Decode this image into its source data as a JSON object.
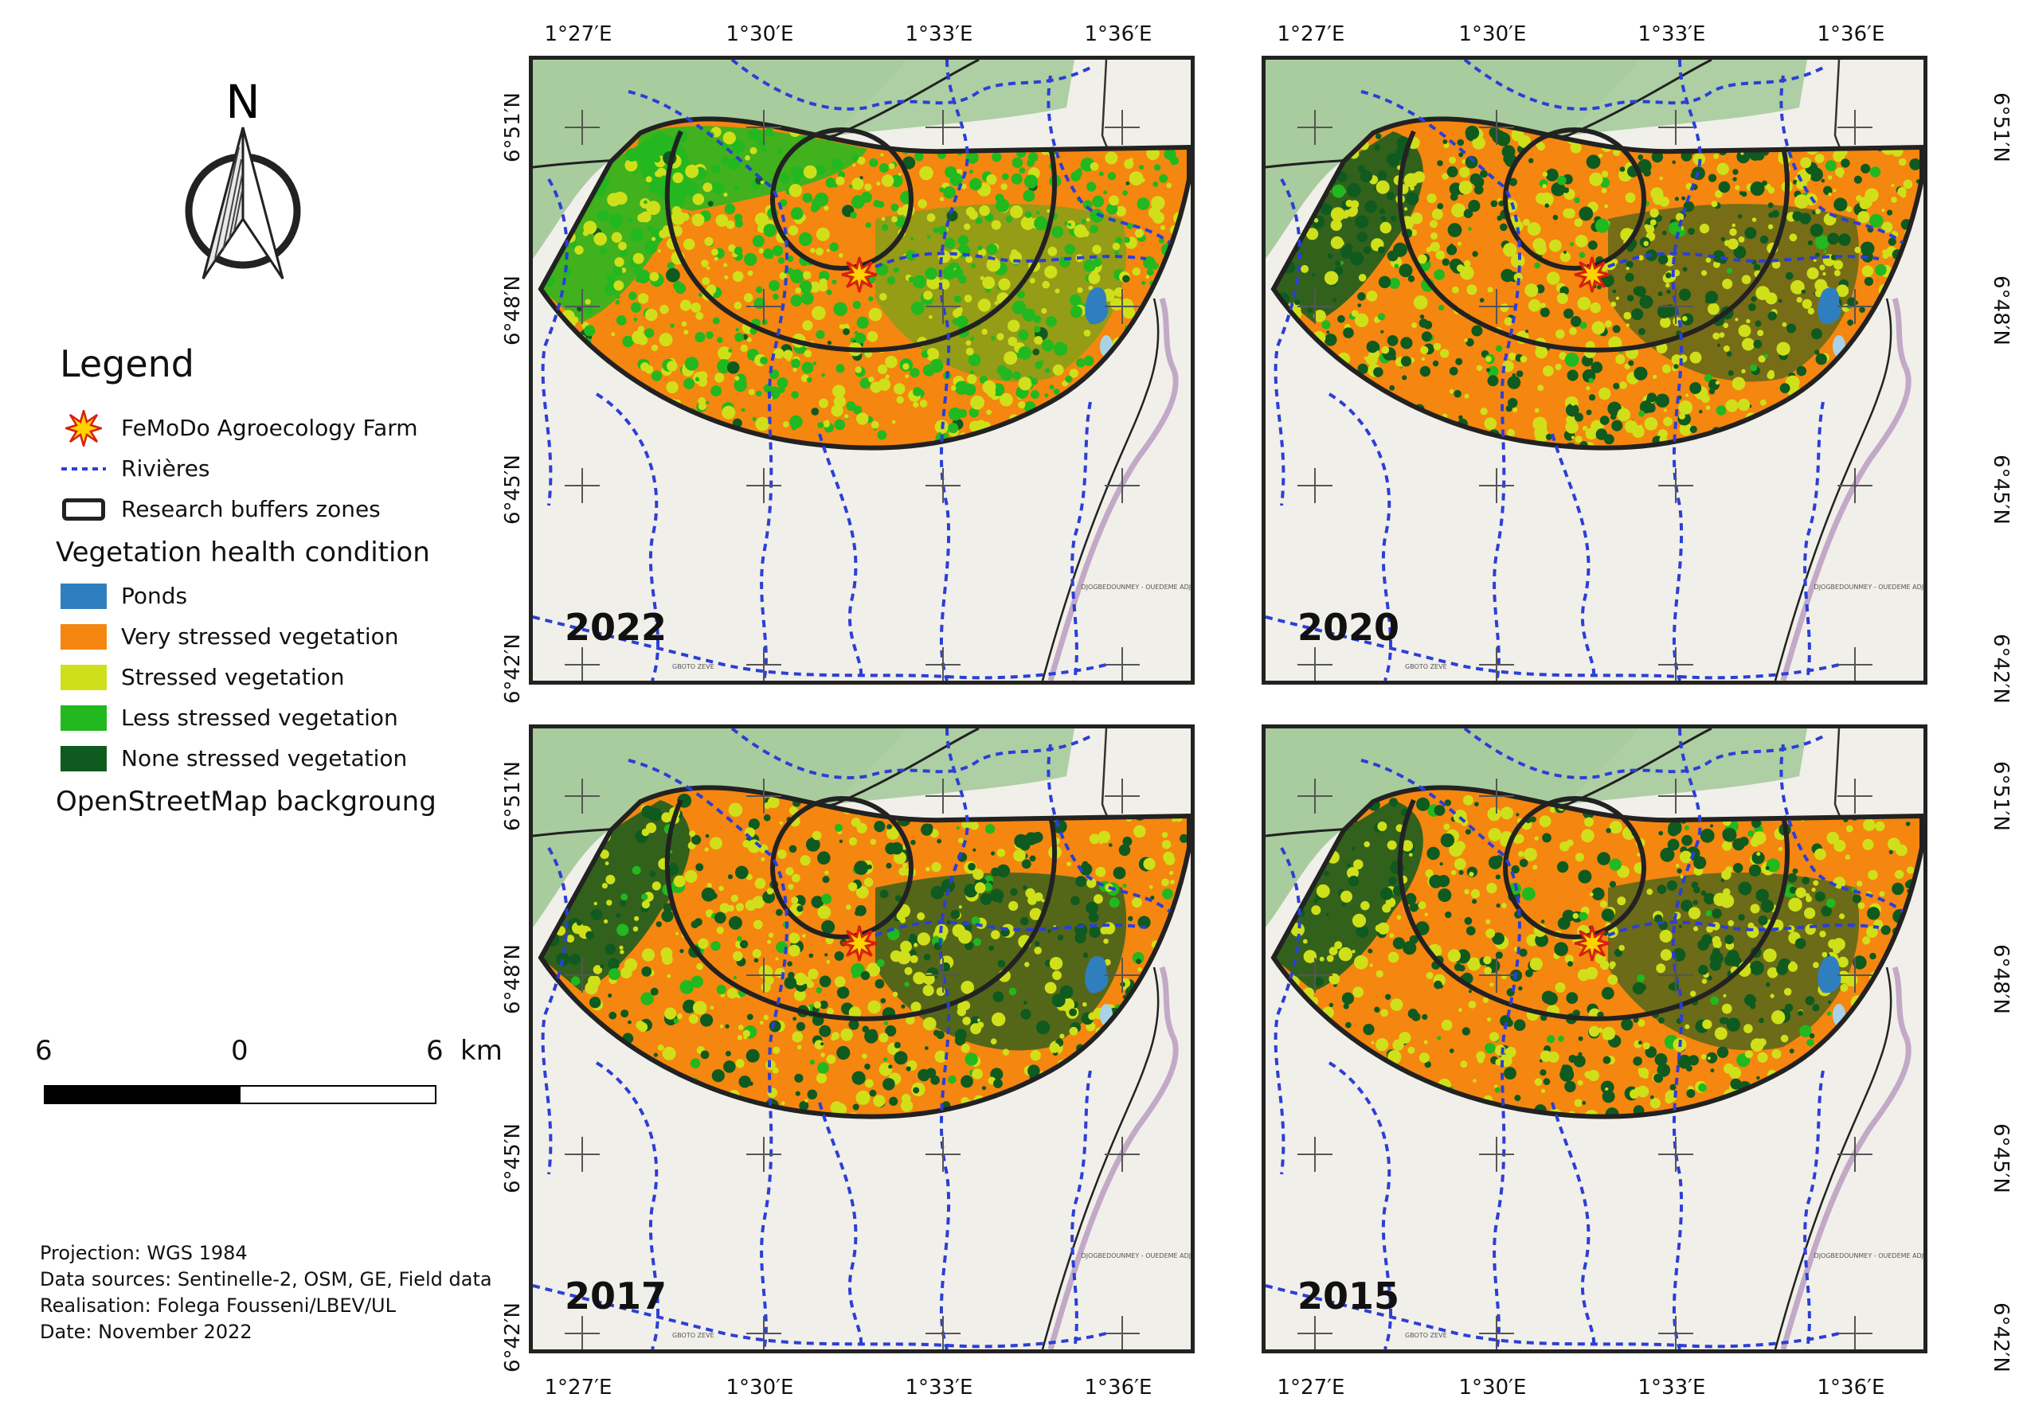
{
  "north_arrow": {
    "letter": "N"
  },
  "legend": {
    "title": "Legend",
    "items": [
      {
        "label": "FeMoDo Agroecology Farm",
        "symbol": "star"
      },
      {
        "label": "Rivières",
        "symbol": "dashed-line",
        "color": "#2b3fd6"
      },
      {
        "label": "Research buffers zones",
        "symbol": "outline-box"
      }
    ],
    "vegetation_heading": "Vegetation health condition",
    "vegetation_classes": [
      {
        "label": "Ponds",
        "color": "#2f7fbf"
      },
      {
        "label": "Very stressed vegetation",
        "color": "#f5860f"
      },
      {
        "label": "Stressed vegetation",
        "color": "#cfe01a"
      },
      {
        "label": "Less stressed vegetation",
        "color": "#21b820"
      },
      {
        "label": "None stressed vegetation",
        "color": "#0f5a1e"
      }
    ],
    "background_label": "OpenStreetMap backgroung"
  },
  "scale_bar": {
    "left_label": "6",
    "middle_label": "0",
    "right_label": "6",
    "unit": "km"
  },
  "credits": {
    "projection": "Projection: WGS 1984",
    "sources": "Data sources: Sentinelle-2, OSM, GE, Field data",
    "realisation": "Realisation: Folega Fousseni/LBEV/UL",
    "date": "Date: November 2022"
  },
  "lon_ticks": [
    "1°27′E",
    "1°30′E",
    "1°33′E",
    "1°36′E"
  ],
  "lat_ticks": [
    "6°51′N",
    "6°48′N",
    "6°45′N",
    "6°42′N"
  ],
  "panels": [
    {
      "year": "2022",
      "id": "p2022"
    },
    {
      "year": "2020",
      "id": "p2020"
    },
    {
      "year": "2017",
      "id": "p2017"
    },
    {
      "year": "2015",
      "id": "p2015"
    }
  ],
  "map_labels": {
    "town_right": "DJOGBEDOUNMEY - OUEDEME ADJA",
    "town_left": "GBOTO ZEVE"
  },
  "colors": {
    "forest_bg": "#a9cc9f",
    "land_bg": "#f1efe9",
    "border": "#222222",
    "river": "#2b3fd6",
    "pond": "#2f7fbf"
  }
}
